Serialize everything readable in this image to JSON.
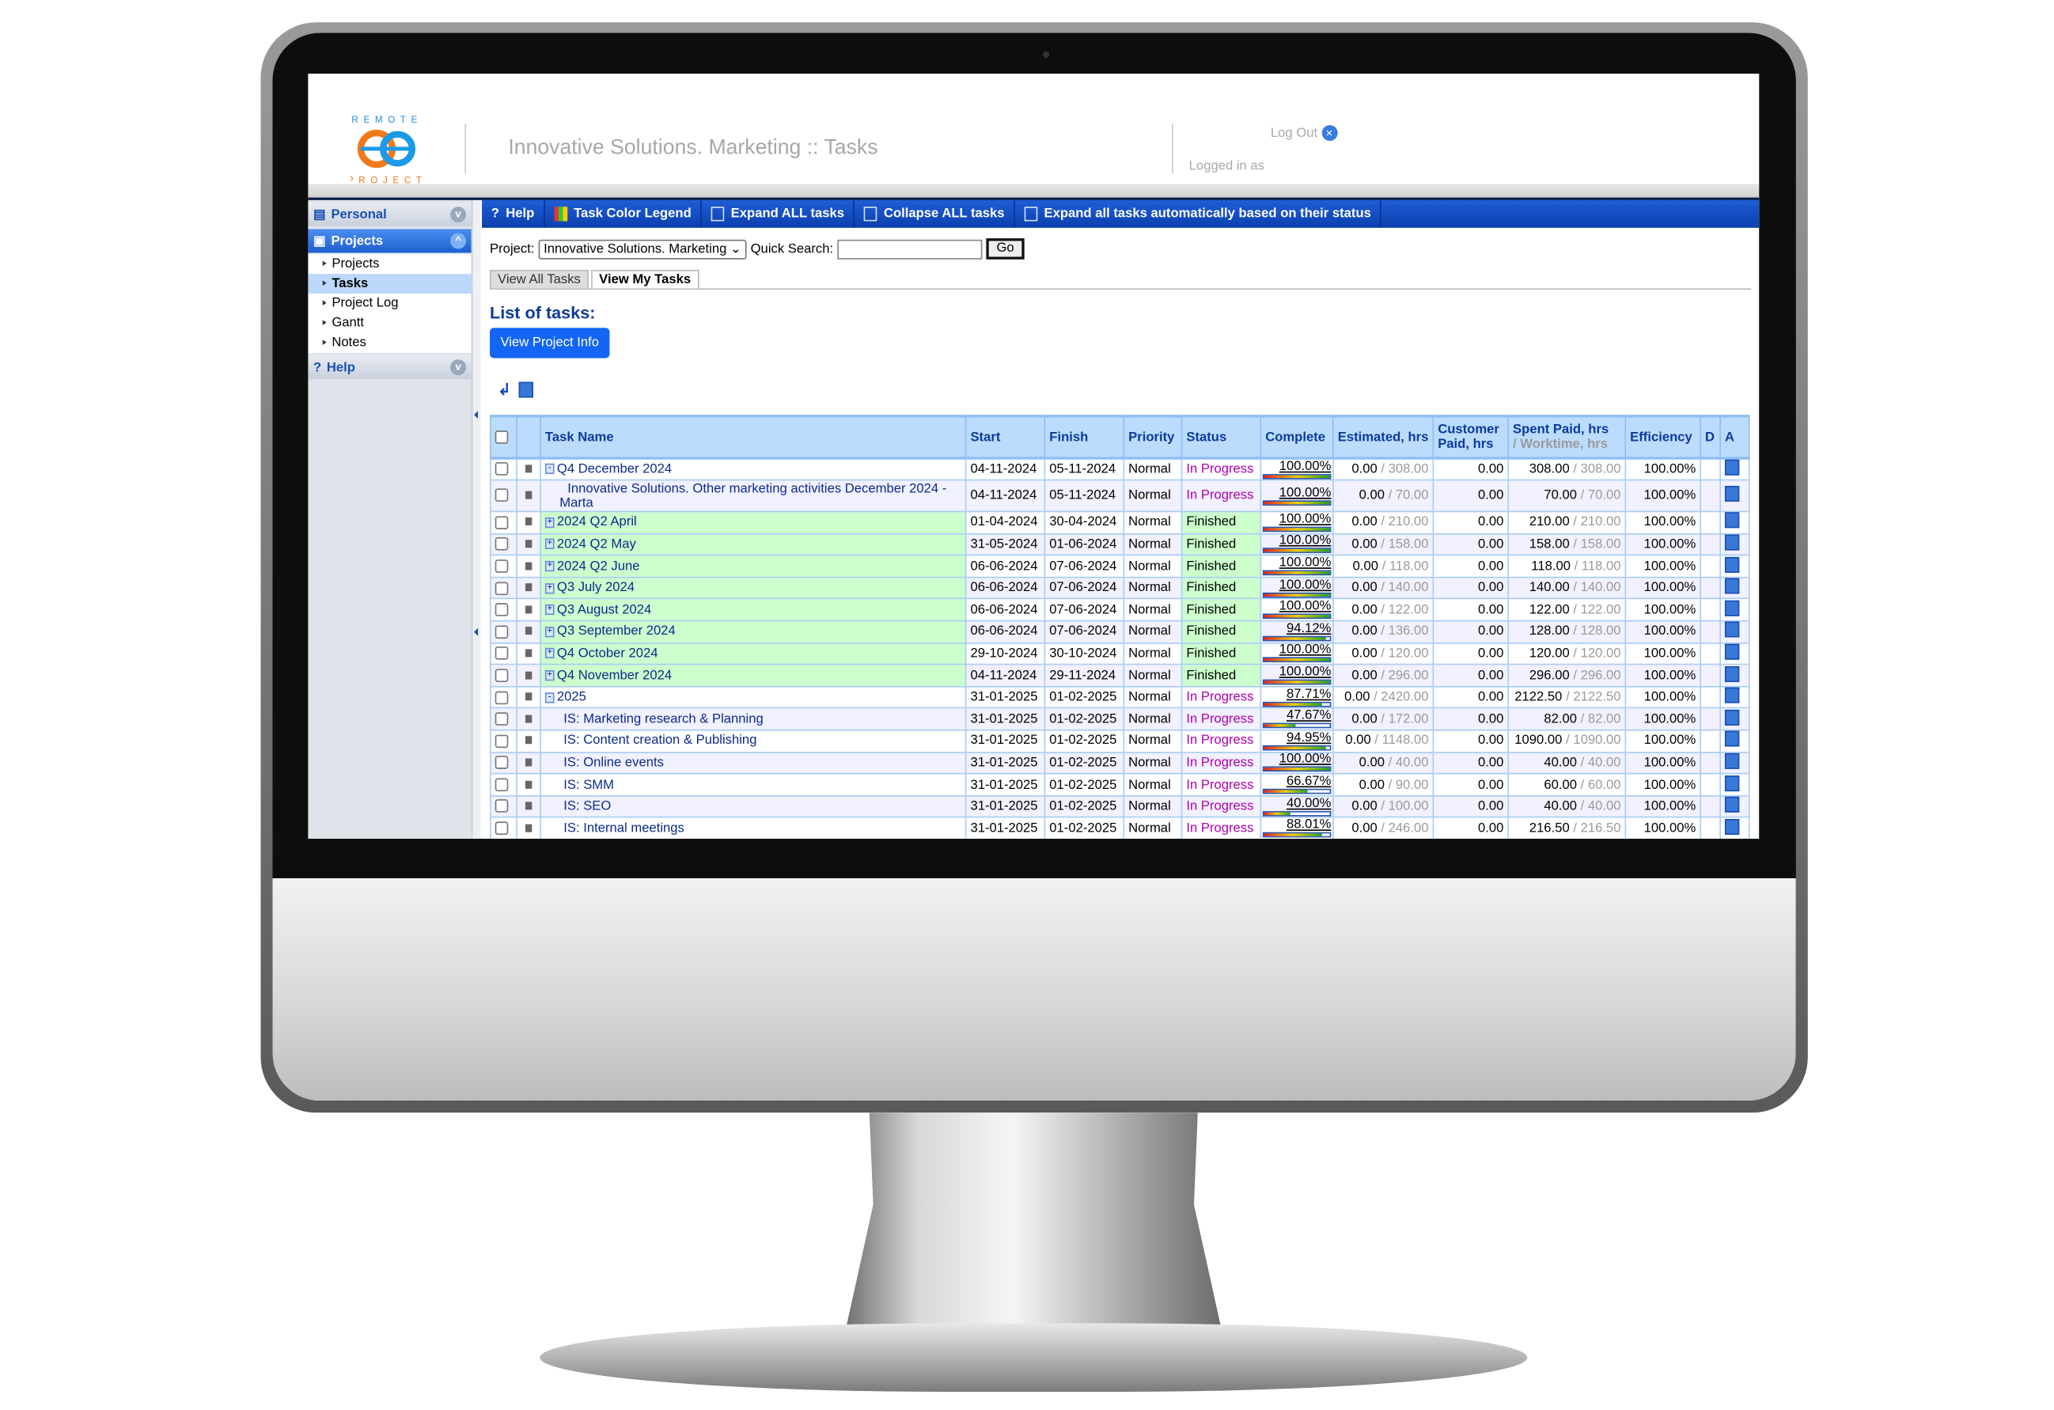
{
  "header": {
    "app_title": "Innovative Solutions. Marketing :: Tasks",
    "logout_label": "Log Out",
    "logged_in_label": "Logged in as",
    "logo_text_top": "REMOTE",
    "logo_text_bottom": "PROJECT"
  },
  "sidebar": {
    "sections": [
      {
        "label": "Personal",
        "icon": "document-icon"
      },
      {
        "label": "Projects",
        "icon": "briefcase-icon"
      },
      {
        "label": "Help",
        "icon": "question-icon"
      }
    ],
    "items": [
      {
        "label": "Projects"
      },
      {
        "label": "Tasks",
        "active": true
      },
      {
        "label": "Project Log"
      },
      {
        "label": "Gantt"
      },
      {
        "label": "Notes"
      }
    ]
  },
  "toolbar": {
    "buttons": [
      {
        "label": "Help",
        "icon": "question-icon"
      },
      {
        "label": "Task Color Legend",
        "icon": "color-grid-icon"
      },
      {
        "label": "Expand ALL tasks",
        "icon": "expand-icon"
      },
      {
        "label": "Collapse ALL tasks",
        "icon": "collapse-icon"
      },
      {
        "label": "Expand all tasks automatically based on their status",
        "icon": "auto-expand-icon"
      }
    ]
  },
  "filters": {
    "project_label": "Project:",
    "project_value": "Innovative Solutions. Marketing",
    "search_label": "Quick Search:",
    "search_value": "",
    "go_label": "Go"
  },
  "tabs": [
    {
      "label": "View All Tasks"
    },
    {
      "label": "View My Tasks",
      "active": true
    }
  ],
  "list_title": "List of tasks:",
  "view_project_info": "View Project Info",
  "colors": {
    "toolbar": "#0b3fae",
    "finished_bg": "#ccffcc",
    "in_progress": "#b000b0",
    "header_bg": "#bcdcfd",
    "button": "#1565f5"
  },
  "table": {
    "columns": [
      "Task Name",
      "Start",
      "Finish",
      "Priority",
      "Status",
      "Complete",
      "Estimated, hrs",
      "Customer Paid, hrs",
      "Spent Paid, hrs",
      "/ Worktime, hrs",
      "Efficiency",
      "D",
      "A"
    ],
    "rows": [
      {
        "name": "Q4 December 2024",
        "exp": "minus",
        "level": 0,
        "start": "04-11-2024",
        "finish": "05-11-2024",
        "priority": "Normal",
        "status": "In Progress",
        "complete": "100.00%",
        "pct": 100,
        "est_a": "0.00",
        "est_b": "308.00",
        "cust": "0.00",
        "spent": "308.00",
        "work": "308.00",
        "eff": "100.00%"
      },
      {
        "name": "Innovative Solutions. Other marketing activities December 2024 - Marta",
        "exp": "",
        "level": 1,
        "start": "04-11-2024",
        "finish": "05-11-2024",
        "priority": "Normal",
        "status": "In Progress",
        "complete": "100.00%",
        "pct": 100,
        "est_a": "0.00",
        "est_b": "70.00",
        "cust": "0.00",
        "spent": "70.00",
        "work": "70.00",
        "eff": "100.00%"
      },
      {
        "name": "2024 Q2 April",
        "exp": "plus",
        "level": 0,
        "start": "01-04-2024",
        "finish": "30-04-2024",
        "priority": "Normal",
        "status": "Finished",
        "complete": "100.00%",
        "pct": 100,
        "est_a": "0.00",
        "est_b": "210.00",
        "cust": "0.00",
        "spent": "210.00",
        "work": "210.00",
        "eff": "100.00%"
      },
      {
        "name": "2024 Q2 May",
        "exp": "plus",
        "level": 0,
        "start": "31-05-2024",
        "finish": "01-06-2024",
        "priority": "Normal",
        "status": "Finished",
        "complete": "100.00%",
        "pct": 100,
        "est_a": "0.00",
        "est_b": "158.00",
        "cust": "0.00",
        "spent": "158.00",
        "work": "158.00",
        "eff": "100.00%"
      },
      {
        "name": "2024 Q2 June",
        "exp": "plus",
        "level": 0,
        "start": "06-06-2024",
        "finish": "07-06-2024",
        "priority": "Normal",
        "status": "Finished",
        "complete": "100.00%",
        "pct": 100,
        "est_a": "0.00",
        "est_b": "118.00",
        "cust": "0.00",
        "spent": "118.00",
        "work": "118.00",
        "eff": "100.00%"
      },
      {
        "name": "Q3 July 2024",
        "exp": "plus",
        "level": 0,
        "start": "06-06-2024",
        "finish": "07-06-2024",
        "priority": "Normal",
        "status": "Finished",
        "complete": "100.00%",
        "pct": 100,
        "est_a": "0.00",
        "est_b": "140.00",
        "cust": "0.00",
        "spent": "140.00",
        "work": "140.00",
        "eff": "100.00%"
      },
      {
        "name": "Q3 August 2024",
        "exp": "plus",
        "level": 0,
        "start": "06-06-2024",
        "finish": "07-06-2024",
        "priority": "Normal",
        "status": "Finished",
        "complete": "100.00%",
        "pct": 100,
        "est_a": "0.00",
        "est_b": "122.00",
        "cust": "0.00",
        "spent": "122.00",
        "work": "122.00",
        "eff": "100.00%"
      },
      {
        "name": "Q3 September 2024",
        "exp": "plus",
        "level": 0,
        "start": "06-06-2024",
        "finish": "07-06-2024",
        "priority": "Normal",
        "status": "Finished",
        "complete": "94.12%",
        "pct": 94.12,
        "est_a": "0.00",
        "est_b": "136.00",
        "cust": "0.00",
        "spent": "128.00",
        "work": "128.00",
        "eff": "100.00%"
      },
      {
        "name": "Q4 October 2024",
        "exp": "plus",
        "level": 0,
        "start": "29-10-2024",
        "finish": "30-10-2024",
        "priority": "Normal",
        "status": "Finished",
        "complete": "100.00%",
        "pct": 100,
        "est_a": "0.00",
        "est_b": "120.00",
        "cust": "0.00",
        "spent": "120.00",
        "work": "120.00",
        "eff": "100.00%"
      },
      {
        "name": "Q4 November 2024",
        "exp": "plus",
        "level": 0,
        "start": "04-11-2024",
        "finish": "29-11-2024",
        "priority": "Normal",
        "status": "Finished",
        "complete": "100.00%",
        "pct": 100,
        "est_a": "0.00",
        "est_b": "296.00",
        "cust": "0.00",
        "spent": "296.00",
        "work": "296.00",
        "eff": "100.00%"
      },
      {
        "name": "2025",
        "exp": "minus",
        "level": 0,
        "start": "31-01-2025",
        "finish": "01-02-2025",
        "priority": "Normal",
        "status": "In Progress",
        "complete": "87.71%",
        "pct": 87.71,
        "est_a": "0.00",
        "est_b": "2420.00",
        "cust": "0.00",
        "spent": "2122.50",
        "work": "2122.50",
        "eff": "100.00%"
      },
      {
        "name": "IS: Marketing research & Planning",
        "exp": "",
        "level": 1,
        "start": "31-01-2025",
        "finish": "01-02-2025",
        "priority": "Normal",
        "status": "In Progress",
        "complete": "47.67%",
        "pct": 47.67,
        "est_a": "0.00",
        "est_b": "172.00",
        "cust": "0.00",
        "spent": "82.00",
        "work": "82.00",
        "eff": "100.00%"
      },
      {
        "name": "IS: Content creation & Publishing",
        "exp": "",
        "level": 1,
        "start": "31-01-2025",
        "finish": "01-02-2025",
        "priority": "Normal",
        "status": "In Progress",
        "complete": "94.95%",
        "pct": 94.95,
        "est_a": "0.00",
        "est_b": "1148.00",
        "cust": "0.00",
        "spent": "1090.00",
        "work": "1090.00",
        "eff": "100.00%"
      },
      {
        "name": "IS: Online events",
        "exp": "",
        "level": 1,
        "start": "31-01-2025",
        "finish": "01-02-2025",
        "priority": "Normal",
        "status": "In Progress",
        "complete": "100.00%",
        "pct": 100,
        "est_a": "0.00",
        "est_b": "40.00",
        "cust": "0.00",
        "spent": "40.00",
        "work": "40.00",
        "eff": "100.00%"
      },
      {
        "name": "IS: SMM",
        "exp": "",
        "level": 1,
        "start": "31-01-2025",
        "finish": "01-02-2025",
        "priority": "Normal",
        "status": "In Progress",
        "complete": "66.67%",
        "pct": 66.67,
        "est_a": "0.00",
        "est_b": "90.00",
        "cust": "0.00",
        "spent": "60.00",
        "work": "60.00",
        "eff": "100.00%"
      },
      {
        "name": "IS: SEO",
        "exp": "",
        "level": 1,
        "start": "31-01-2025",
        "finish": "01-02-2025",
        "priority": "Normal",
        "status": "In Progress",
        "complete": "40.00%",
        "pct": 40,
        "est_a": "0.00",
        "est_b": "100.00",
        "cust": "0.00",
        "spent": "40.00",
        "work": "40.00",
        "eff": "100.00%"
      },
      {
        "name": "IS: Internal meetings",
        "exp": "",
        "level": 1,
        "start": "31-01-2025",
        "finish": "01-02-2025",
        "priority": "Normal",
        "status": "In Progress",
        "complete": "88.01%",
        "pct": 88.01,
        "est_a": "0.00",
        "est_b": "246.00",
        "cust": "0.00",
        "spent": "216.50",
        "work": "216.50",
        "eff": "100.00%"
      }
    ]
  }
}
